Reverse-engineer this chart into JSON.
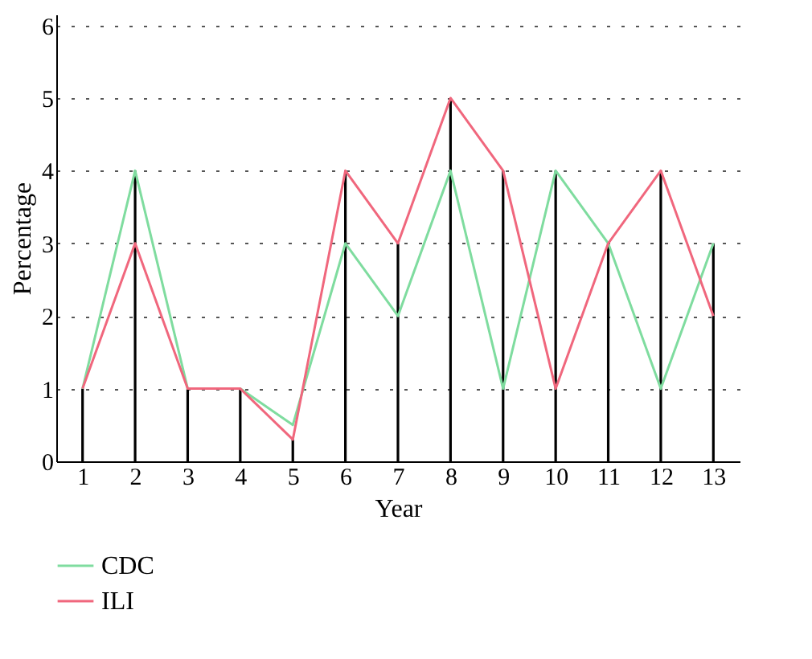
{
  "chart_data": {
    "type": "line",
    "xlabel": "Year",
    "ylabel": "Percentage",
    "x": [
      1,
      2,
      3,
      4,
      5,
      6,
      7,
      8,
      9,
      10,
      11,
      12,
      13
    ],
    "series": [
      {
        "type": "bar",
        "color": "#000000",
        "values": [
          1,
          4,
          1,
          1,
          0.3,
          4,
          3,
          5,
          4,
          4,
          3,
          4,
          3
        ]
      },
      {
        "name": "CDC",
        "color": "#7fdc9f",
        "values": [
          1,
          4,
          1,
          1,
          0.5,
          3,
          2,
          4,
          1,
          4,
          3,
          1,
          3
        ]
      },
      {
        "name": "ILI",
        "color": "#f0677d",
        "values": [
          1,
          3,
          1,
          1,
          0.3,
          4,
          3,
          5,
          4,
          1,
          3,
          4,
          2
        ]
      }
    ],
    "xlim": [
      0.5,
      13.5
    ],
    "xticks": [
      1,
      2,
      3,
      4,
      5,
      6,
      7,
      8,
      9,
      10,
      11,
      12,
      13
    ],
    "ylim": [
      0,
      6.15
    ],
    "yticks": [
      0,
      1,
      2,
      3,
      4,
      5,
      6
    ],
    "grid": "y",
    "line_style": "solid",
    "legend": "bottom left"
  }
}
